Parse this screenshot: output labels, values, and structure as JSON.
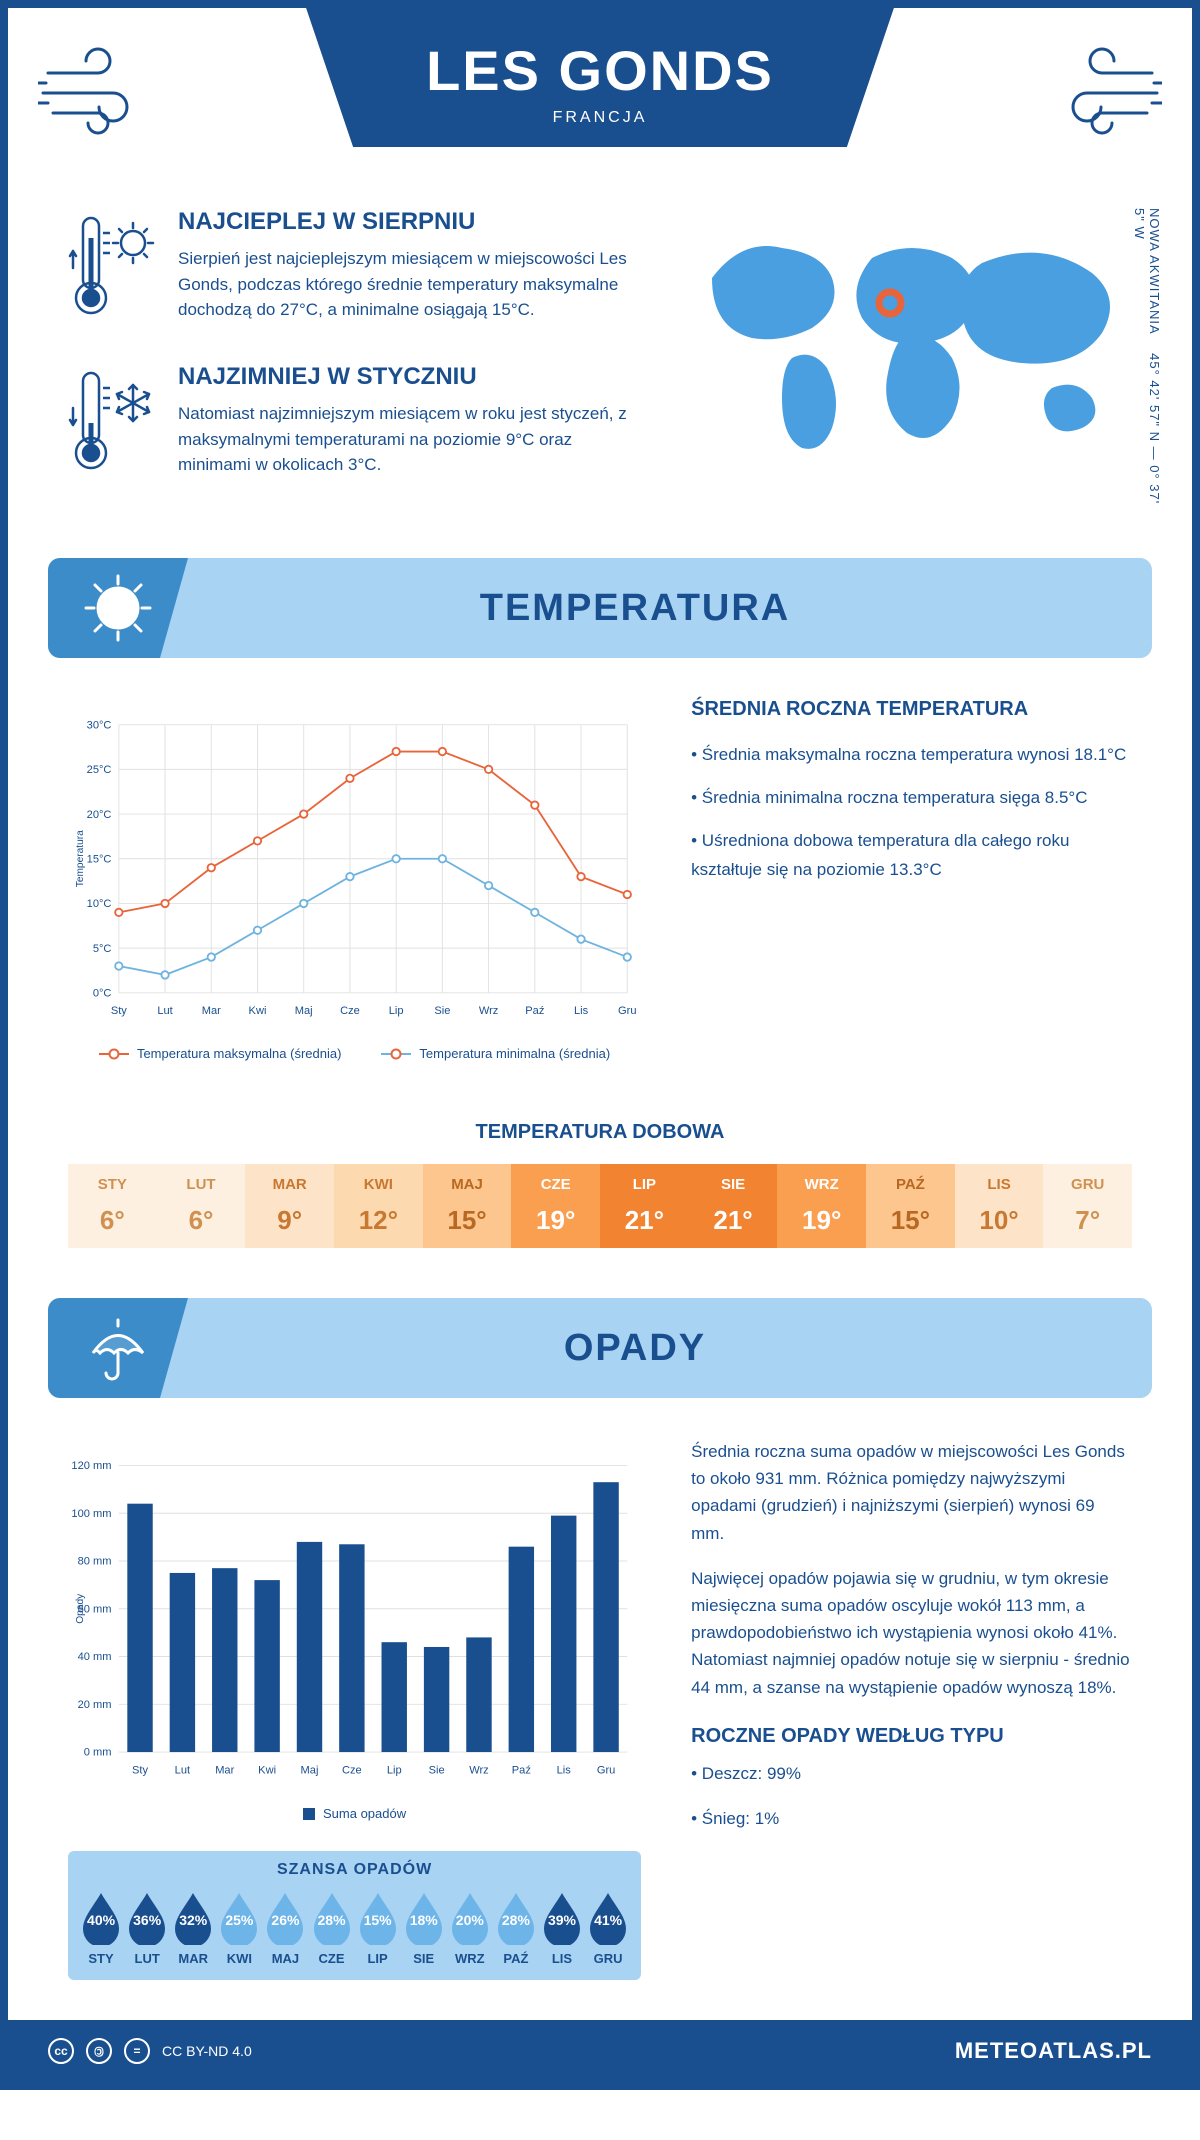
{
  "header": {
    "title": "LES GONDS",
    "country": "FRANCJA"
  },
  "coords": "45° 42' 57\" N — 0° 37' 5\" W",
  "region": "NOWA AKWITANIA",
  "colors": {
    "primary": "#1a4f8f",
    "light_blue": "#a9d3f2",
    "mid_blue": "#3b8cc9",
    "max_line": "#e8653b",
    "min_line": "#6fb3e0",
    "grid": "#e0e0e0"
  },
  "facts": {
    "warm": {
      "title": "NAJCIEPLEJ W SIERPNIU",
      "text": "Sierpień jest najcieplejszym miesiącem w miejscowości Les Gonds, podczas którego średnie temperatury maksymalne dochodzą do 27°C, a minimalne osiągają 15°C."
    },
    "cold": {
      "title": "NAJZIMNIEJ W STYCZNIU",
      "text": "Natomiast najzimniejszym miesiącem w roku jest styczeń, z maksymalnymi temperaturami na poziomie 9°C oraz minimami w okolicach 3°C."
    }
  },
  "sections": {
    "temp": "TEMPERATURA",
    "precip": "OPADY"
  },
  "months": [
    "Sty",
    "Lut",
    "Mar",
    "Kwi",
    "Maj",
    "Cze",
    "Lip",
    "Sie",
    "Wrz",
    "Paź",
    "Lis",
    "Gru"
  ],
  "months_upper": [
    "STY",
    "LUT",
    "MAR",
    "KWI",
    "MAJ",
    "CZE",
    "LIP",
    "SIE",
    "WRZ",
    "PAŹ",
    "LIS",
    "GRU"
  ],
  "temp_chart": {
    "ylabel": "Temperatura",
    "ylim": [
      0,
      30
    ],
    "ytick_step": 5,
    "max_series": [
      9,
      10,
      14,
      17,
      20,
      24,
      27,
      27,
      25,
      21,
      13,
      11
    ],
    "min_series": [
      3,
      2,
      4,
      7,
      10,
      13,
      15,
      15,
      12,
      9,
      6,
      4
    ],
    "legend_max": "Temperatura maksymalna (średnia)",
    "legend_min": "Temperatura minimalna (średnia)"
  },
  "temp_side": {
    "title": "ŚREDNIA ROCZNA TEMPERATURA",
    "b1": "• Średnia maksymalna roczna temperatura wynosi 18.1°C",
    "b2": "• Średnia minimalna roczna temperatura sięga 8.5°C",
    "b3": "• Uśredniona dobowa temperatura dla całego roku kształtuje się na poziomie 13.3°C"
  },
  "daily": {
    "title": "TEMPERATURA DOBOWA",
    "values": [
      "6°",
      "6°",
      "9°",
      "12°",
      "15°",
      "19°",
      "21°",
      "21°",
      "19°",
      "15°",
      "10°",
      "7°"
    ],
    "bg_colors": [
      "#fdf0e0",
      "#fdf0e0",
      "#fde4c9",
      "#fdd9b0",
      "#fcc68e",
      "#fa9e4f",
      "#f28331",
      "#f28331",
      "#fa9e4f",
      "#fcc68e",
      "#fde4c9",
      "#fdf0e0"
    ],
    "text_colors": [
      "#d09050",
      "#d09050",
      "#c87830",
      "#c87830",
      "#b86820",
      "#ffffff",
      "#ffffff",
      "#ffffff",
      "#ffffff",
      "#b86820",
      "#c87830",
      "#d09050"
    ]
  },
  "precip_chart": {
    "ylabel": "Opady",
    "ylim": [
      0,
      120
    ],
    "ytick_step": 20,
    "values": [
      104,
      75,
      77,
      72,
      88,
      87,
      46,
      44,
      48,
      86,
      99,
      113
    ],
    "legend": "Suma opadów",
    "bar_color": "#1a4f8f"
  },
  "precip_side": {
    "p1": "Średnia roczna suma opadów w miejscowości Les Gonds to około 931 mm. Różnica pomiędzy najwyższymi opadami (grudzień) i najniższymi (sierpień) wynosi 69 mm.",
    "p2": "Najwięcej opadów pojawia się w grudniu, w tym okresie miesięczna suma opadów oscyluje wokół 113 mm, a prawdopodobieństwo ich wystąpienia wynosi około 41%. Natomiast najmniej opadów notuje się w sierpniu - średnio 44 mm, a szanse na wystąpienie opadów wynoszą 18%.",
    "type_title": "ROCZNE OPADY WEDŁUG TYPU",
    "rain": "• Deszcz: 99%",
    "snow": "• Śnieg: 1%"
  },
  "chance": {
    "title": "SZANSA OPADÓW",
    "values": [
      40,
      36,
      32,
      25,
      26,
      28,
      15,
      18,
      20,
      28,
      39,
      41
    ],
    "dark_threshold": 30,
    "dark_color": "#1a4f8f",
    "light_color": "#6db4e8"
  },
  "footer": {
    "license": "CC BY-ND 4.0",
    "site": "METEOATLAS.PL"
  }
}
